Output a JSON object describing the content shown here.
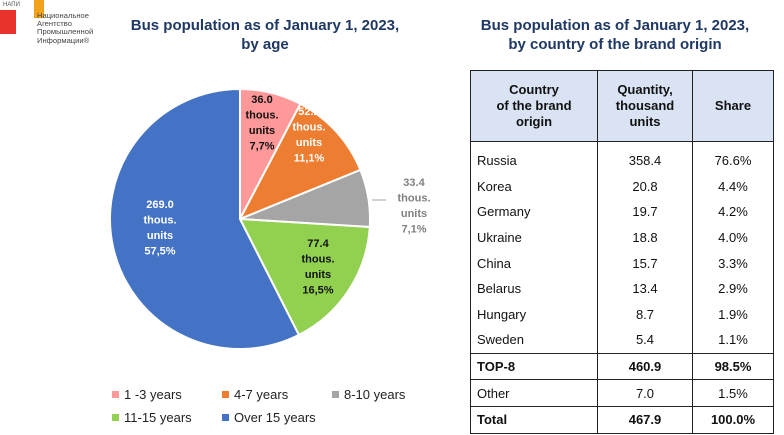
{
  "logo": {
    "abbr": "НАПИ",
    "line1": "Национальное",
    "line2": "Агентство",
    "line3": "Промышленной",
    "line4": "Информации®"
  },
  "chart_data": [
    {
      "type": "pie",
      "title": "Bus population as of January 1, 2023,",
      "title_line2": "by age",
      "slices": [
        {
          "name": "1 -3 years",
          "value": 36.0,
          "label_lines": [
            "36.0",
            "thous.",
            "units",
            "7,7%"
          ],
          "color": "#ff9999"
        },
        {
          "name": "4-7 years",
          "value": 52.2,
          "label_lines": [
            "52.2",
            "thous.",
            "units",
            "11,1%"
          ],
          "color": "#ed7d31"
        },
        {
          "name": "8-10 years",
          "value": 33.4,
          "label_lines": [
            "33.4",
            "thous.",
            "units",
            "7,1%"
          ],
          "color": "#a5a5a5"
        },
        {
          "name": "11-15 years",
          "value": 77.4,
          "label_lines": [
            "77.4",
            "thous.",
            "units",
            "16,5%"
          ],
          "color": "#92d050"
        },
        {
          "name": "Over 15 years",
          "value": 269.0,
          "label_lines": [
            "269.0",
            "thous.",
            "units",
            "57,5%"
          ],
          "color": "#4472c4"
        }
      ],
      "legend_position": "bottom"
    },
    {
      "type": "table",
      "title": "Bus population as of January 1, 2023,",
      "title_line2": "by country of the brand origin",
      "columns": [
        [
          "Country",
          "of the brand",
          "origin"
        ],
        [
          "Quantity,",
          "thousand",
          "units"
        ],
        [
          "Share"
        ]
      ],
      "rows": [
        {
          "country": "Russia",
          "quantity": "358.4",
          "share": "76.6%"
        },
        {
          "country": "Korea",
          "quantity": "20.8",
          "share": "4.4%"
        },
        {
          "country": "Germany",
          "quantity": "19.7",
          "share": "4.2%"
        },
        {
          "country": "Ukraine",
          "quantity": "18.8",
          "share": "4.0%"
        },
        {
          "country": "China",
          "quantity": "15.7",
          "share": "3.3%"
        },
        {
          "country": "Belarus",
          "quantity": "13.4",
          "share": "2.9%"
        },
        {
          "country": "Hungary",
          "quantity": "8.7",
          "share": "1.9%"
        },
        {
          "country": "Sweden",
          "quantity": "5.4",
          "share": "1.1%"
        },
        {
          "country": "TOP-8",
          "quantity": "460.9",
          "share": "98.5%",
          "bold": true
        },
        {
          "country": "Other",
          "quantity": "7.0",
          "share": "1.5%"
        },
        {
          "country": "Total",
          "quantity": "467.9",
          "share": "100.0%",
          "bold": true
        }
      ]
    }
  ]
}
